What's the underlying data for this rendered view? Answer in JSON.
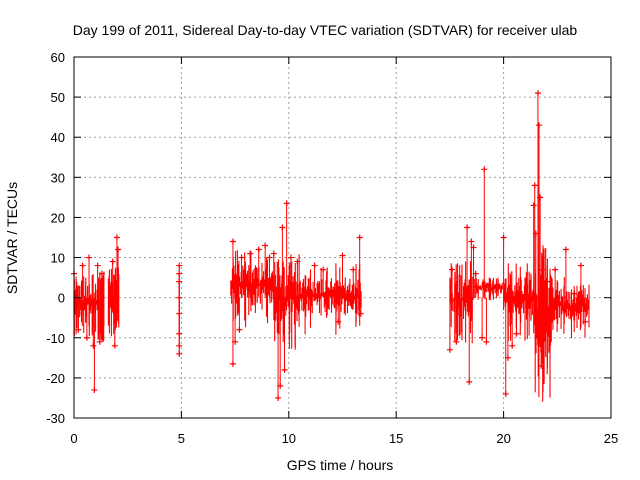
{
  "chart_data": {
    "type": "scatter",
    "title": "Day 199 of 2011, Sidereal Day-to-day VTEC variation (SDTVAR) for receiver ulab",
    "xlabel": "GPS time / hours",
    "ylabel": "SDTVAR / TECUs",
    "xlim": [
      0,
      25
    ],
    "ylim": [
      -30,
      60
    ],
    "xticks": [
      0,
      5,
      10,
      15,
      20,
      25
    ],
    "yticks": [
      -30,
      -20,
      -10,
      0,
      10,
      20,
      30,
      40,
      50,
      60
    ],
    "grid": true,
    "marker": "+",
    "color": "#ff0000",
    "series": [
      {
        "name": "SDTVAR",
        "segments": [
          {
            "x_start": 0.0,
            "x_end": 1.0,
            "band_low": -5,
            "band_high": 3
          },
          {
            "x_start": 1.0,
            "x_end": 1.4,
            "band_low": -6,
            "band_high": 3
          },
          {
            "x_start": 1.6,
            "x_end": 2.1,
            "band_low": -5,
            "band_high": 4
          },
          {
            "x_start": 7.3,
            "x_end": 9.3,
            "band_low": -2,
            "band_high": 8
          },
          {
            "x_start": 9.3,
            "x_end": 10.5,
            "band_low": -6,
            "band_high": 6
          },
          {
            "x_start": 10.5,
            "x_end": 13.4,
            "band_low": -4,
            "band_high": 5
          },
          {
            "x_start": 17.5,
            "x_end": 18.6,
            "band_low": -6,
            "band_high": 5
          },
          {
            "x_start": 18.6,
            "x_end": 20.0,
            "band_low": 1,
            "band_high": 4
          },
          {
            "x_start": 20.0,
            "x_end": 21.4,
            "band_low": -5,
            "band_high": 5
          },
          {
            "x_start": 21.4,
            "x_end": 22.3,
            "band_low": -14,
            "band_high": 6
          },
          {
            "x_start": 22.3,
            "x_end": 24.0,
            "band_low": -6,
            "band_high": 2
          }
        ],
        "points": [
          {
            "x": 0.0,
            "y": 6
          },
          {
            "x": 0.2,
            "y": -8
          },
          {
            "x": 0.4,
            "y": 8
          },
          {
            "x": 0.6,
            "y": -10
          },
          {
            "x": 0.7,
            "y": 10
          },
          {
            "x": 0.9,
            "y": -12
          },
          {
            "x": 0.95,
            "y": -23
          },
          {
            "x": 1.1,
            "y": 8
          },
          {
            "x": 1.2,
            "y": -11
          },
          {
            "x": 1.3,
            "y": 6
          },
          {
            "x": 1.8,
            "y": 9
          },
          {
            "x": 1.9,
            "y": -12
          },
          {
            "x": 2.0,
            "y": 15
          },
          {
            "x": 2.05,
            "y": 12
          },
          {
            "x": 4.9,
            "y": 8
          },
          {
            "x": 4.9,
            "y": 6
          },
          {
            "x": 4.9,
            "y": 4
          },
          {
            "x": 4.9,
            "y": 0
          },
          {
            "x": 4.9,
            "y": -4
          },
          {
            "x": 4.9,
            "y": -9
          },
          {
            "x": 4.9,
            "y": -12
          },
          {
            "x": 4.9,
            "y": -14
          },
          {
            "x": 7.4,
            "y": 14
          },
          {
            "x": 7.4,
            "y": -16.5
          },
          {
            "x": 7.5,
            "y": -11
          },
          {
            "x": 7.7,
            "y": -8
          },
          {
            "x": 7.8,
            "y": 10
          },
          {
            "x": 8.2,
            "y": 11
          },
          {
            "x": 8.6,
            "y": 12
          },
          {
            "x": 8.9,
            "y": 13
          },
          {
            "x": 9.1,
            "y": 10
          },
          {
            "x": 9.3,
            "y": 11
          },
          {
            "x": 9.5,
            "y": -25
          },
          {
            "x": 9.6,
            "y": -22
          },
          {
            "x": 9.7,
            "y": 17.5
          },
          {
            "x": 9.8,
            "y": -18
          },
          {
            "x": 9.9,
            "y": 23.5
          },
          {
            "x": 10.1,
            "y": 10
          },
          {
            "x": 10.4,
            "y": 9
          },
          {
            "x": 11.2,
            "y": 8
          },
          {
            "x": 11.6,
            "y": 7
          },
          {
            "x": 12.3,
            "y": -6
          },
          {
            "x": 12.5,
            "y": 10.5
          },
          {
            "x": 13.0,
            "y": 7
          },
          {
            "x": 13.3,
            "y": 15
          },
          {
            "x": 13.35,
            "y": -4
          },
          {
            "x": 17.5,
            "y": -13
          },
          {
            "x": 17.6,
            "y": 7
          },
          {
            "x": 17.8,
            "y": -11
          },
          {
            "x": 18.3,
            "y": 17.5
          },
          {
            "x": 18.4,
            "y": -21
          },
          {
            "x": 18.5,
            "y": 14
          },
          {
            "x": 18.6,
            "y": 12.5
          },
          {
            "x": 18.7,
            "y": 6
          },
          {
            "x": 19.0,
            "y": -10
          },
          {
            "x": 19.1,
            "y": 32
          },
          {
            "x": 19.2,
            "y": -11
          },
          {
            "x": 20.0,
            "y": 15
          },
          {
            "x": 20.1,
            "y": -24
          },
          {
            "x": 20.2,
            "y": -15
          },
          {
            "x": 20.4,
            "y": -12
          },
          {
            "x": 20.6,
            "y": -9
          },
          {
            "x": 21.4,
            "y": 23
          },
          {
            "x": 21.45,
            "y": 28
          },
          {
            "x": 21.5,
            "y": 16
          },
          {
            "x": 21.6,
            "y": 51
          },
          {
            "x": 21.65,
            "y": 43
          },
          {
            "x": 21.7,
            "y": 25
          },
          {
            "x": 21.75,
            "y": -17
          },
          {
            "x": 21.8,
            "y": 7
          },
          {
            "x": 22.0,
            "y": 4
          },
          {
            "x": 22.4,
            "y": 7
          },
          {
            "x": 22.9,
            "y": 12
          },
          {
            "x": 23.3,
            "y": 1
          },
          {
            "x": 23.6,
            "y": 8
          },
          {
            "x": 23.8,
            "y": -6
          }
        ]
      }
    ]
  }
}
